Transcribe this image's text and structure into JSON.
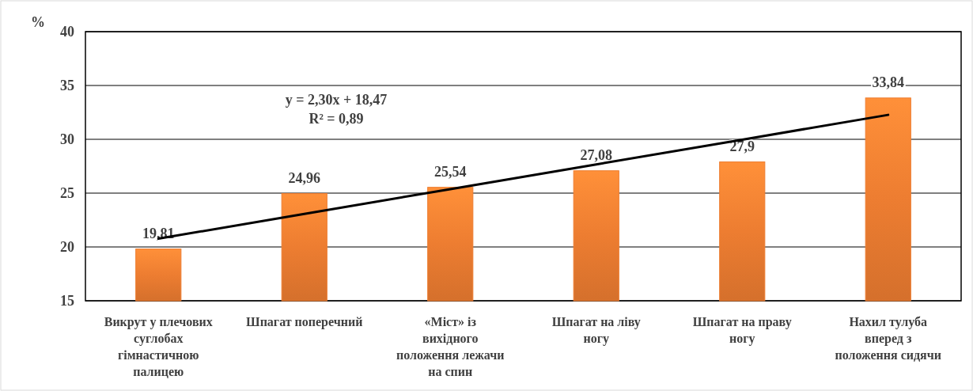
{
  "chart_data": {
    "type": "bar",
    "ylabel": "%",
    "categories": [
      "Викрут у плечових суглобах гімнастичною палицею",
      "Шпагат поперечний",
      "«Міст» із вихідного положення лежачи на спин",
      "Шпагат на ліву ногу",
      "Шпагат на праву ногу",
      "Нахил тулуба вперед з положення сидячи"
    ],
    "series": [
      {
        "color": "#ed7d31",
        "values": [
          19.81,
          24.96,
          25.54,
          27.08,
          27.9,
          33.84
        ],
        "value_labels": [
          "19,81",
          "24,96",
          "25,54",
          "27,08",
          "27,9",
          "33,84"
        ]
      },
      {
        "type": "line",
        "color": "#000000",
        "values": [
          20.77,
          23.07,
          25.37,
          27.67,
          29.97,
          32.27
        ]
      }
    ],
    "annotations": [
      "y = 2,30x + 18,47",
      "R² = 0,89"
    ],
    "ylim": [
      15,
      40
    ],
    "yticks": [
      15,
      20,
      25,
      30,
      35,
      40
    ],
    "grid": "y",
    "marker": "none",
    "line_style": "solid"
  }
}
